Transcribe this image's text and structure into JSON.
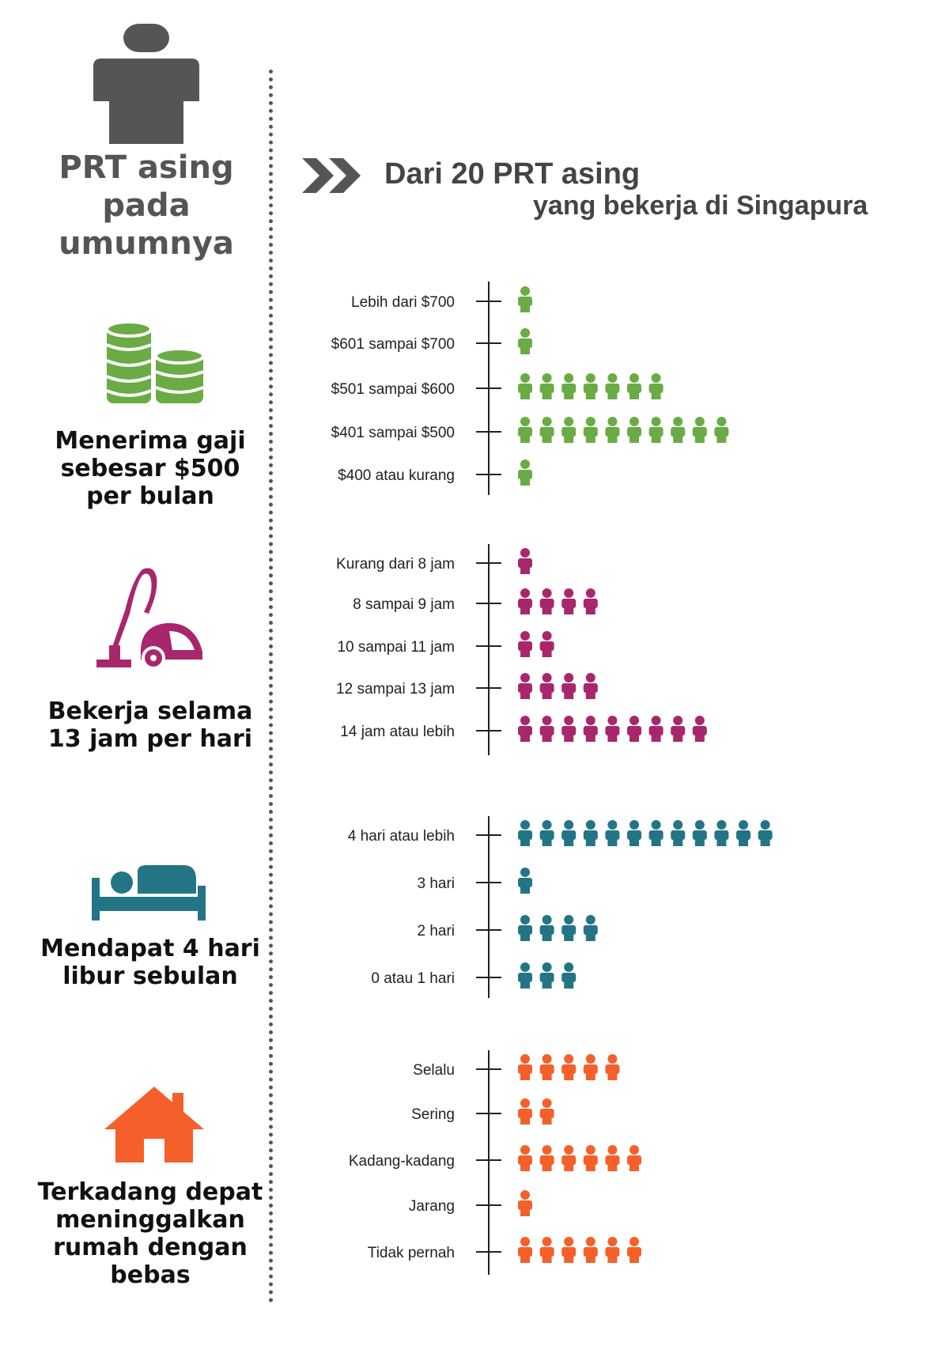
{
  "header": {
    "left_title": [
      "PRT asing",
      "pada",
      "umumnya"
    ],
    "right_title_line1": "Dari 20 PRT asing",
    "right_title_line2": "yang bekerja di Singapura"
  },
  "colors": {
    "dark": "#555555",
    "wage": "#6aab45",
    "hours": "#a8276c",
    "days_off": "#237586",
    "freedom": "#f5602a"
  },
  "sections": [
    {
      "id": "wage",
      "icon": "coin-stacks-icon",
      "caption": [
        "Menerima gaji",
        "sebesar $500",
        "per bulan"
      ]
    },
    {
      "id": "hours",
      "icon": "vacuum-cleaner-icon",
      "caption": [
        "Bekerja selama",
        "13 jam per hari"
      ]
    },
    {
      "id": "days_off",
      "icon": "bed-icon",
      "caption": [
        "Mendapat 4 hari",
        "libur sebulan"
      ]
    },
    {
      "id": "freedom",
      "icon": "house-icon",
      "caption": [
        "Terkadang depat",
        "meninggalkan",
        "rumah dengan",
        "bebas"
      ]
    }
  ],
  "chart_data": [
    {
      "type": "bar",
      "title": "",
      "unit": "PRT (dari 20)",
      "categories": [
        "Lebih dari $700",
        "$601 sampai  $700",
        "$501 sampai  $600",
        "$401 sampai  $500",
        "$400 atau kurang"
      ],
      "values": [
        1,
        1,
        7,
        10,
        1
      ],
      "color": "#6aab45"
    },
    {
      "type": "bar",
      "title": "",
      "unit": "PRT (dari 20)",
      "categories": [
        "Kurang dari 8 jam",
        "8 sampai 9 jam",
        "10 sampai 11 jam",
        "12 sampai 13 jam",
        "14 jam atau lebih"
      ],
      "values": [
        1,
        4,
        2,
        4,
        9
      ],
      "color": "#a8276c"
    },
    {
      "type": "bar",
      "title": "",
      "unit": "PRT (dari 20)",
      "categories": [
        "4 hari atau lebih",
        "3 hari",
        "2 hari",
        "0 atau 1 hari"
      ],
      "values": [
        12,
        1,
        4,
        3
      ],
      "color": "#237586"
    },
    {
      "type": "bar",
      "title": "",
      "unit": "PRT (dari 20)",
      "categories": [
        "Selalu",
        "Sering",
        "Kadang-kadang",
        "Jarang",
        "Tidak pernah"
      ],
      "values": [
        5,
        2,
        6,
        1,
        6
      ],
      "color": "#f5602a"
    }
  ]
}
